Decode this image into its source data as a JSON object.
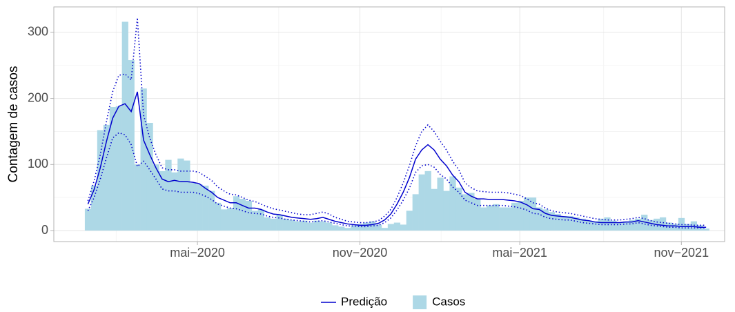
{
  "chart_data": {
    "type": "bar-line",
    "y_label": "Contagem de casos",
    "x": [
      -3,
      4,
      11,
      18,
      25,
      32,
      39,
      46,
      53,
      60,
      67,
      74,
      81,
      88,
      95,
      102,
      109,
      116,
      123,
      130,
      137,
      144,
      151,
      158,
      165,
      172,
      179,
      186,
      193,
      200,
      207,
      214,
      221,
      228,
      235,
      242,
      249,
      256,
      263,
      270,
      277,
      284,
      291,
      298,
      305,
      312,
      319,
      326,
      333,
      340,
      347,
      354,
      361,
      368,
      375,
      382,
      389,
      396,
      403,
      410,
      417,
      424,
      431,
      438,
      445,
      452,
      459,
      466,
      473,
      480,
      487,
      494,
      501,
      508,
      515,
      522,
      529,
      536,
      543,
      550,
      557,
      564,
      571,
      578,
      585,
      592,
      599,
      606,
      613,
      620,
      627,
      634,
      641,
      648,
      655,
      662,
      669,
      676,
      683,
      690,
      697
    ],
    "series": [
      {
        "name": "Predição",
        "type": "line",
        "line_style": "solid",
        "color": "#0000cd",
        "values": [
          40,
          62,
          95,
          135,
          170,
          188,
          192,
          180,
          210,
          137,
          115,
          95,
          78,
          74,
          76,
          74,
          74,
          73,
          71,
          64,
          58,
          50,
          46,
          42,
          42,
          38,
          34,
          34,
          32,
          28,
          25,
          24,
          22,
          20,
          19,
          18,
          17,
          18,
          20,
          17,
          14,
          12,
          10,
          9,
          8,
          8,
          9,
          11,
          16,
          25,
          40,
          58,
          80,
          108,
          122,
          130,
          122,
          108,
          98,
          84,
          74,
          58,
          52,
          48,
          48,
          47,
          47,
          47,
          46,
          45,
          43,
          39,
          33,
          32,
          26,
          23,
          22,
          21,
          20,
          18,
          16,
          15,
          13,
          12,
          12,
          12,
          12,
          13,
          13,
          15,
          13,
          11,
          9,
          8,
          7,
          7,
          6,
          6,
          6,
          5,
          5
        ]
      },
      {
        "name": "Casos",
        "type": "bar",
        "color": "#add8e6",
        "values": [
          33,
          68,
          152,
          160,
          187,
          188,
          316,
          258,
          100,
          215,
          163,
          100,
          90,
          107,
          88,
          109,
          106,
          72,
          70,
          68,
          60,
          42,
          32,
          34,
          52,
          48,
          45,
          30,
          32,
          20,
          18,
          24,
          18,
          16,
          14,
          15,
          12,
          15,
          14,
          12,
          8,
          6,
          4,
          8,
          10,
          12,
          14,
          9,
          4,
          10,
          12,
          9,
          30,
          55,
          85,
          90,
          63,
          80,
          60,
          82,
          65,
          55,
          57,
          48,
          35,
          38,
          40,
          35,
          35,
          42,
          45,
          50,
          50,
          35,
          32,
          28,
          25,
          22,
          22,
          20,
          18,
          15,
          14,
          18,
          20,
          15,
          12,
          14,
          16,
          18,
          24,
          16,
          18,
          20,
          12,
          10,
          19,
          10,
          14,
          8,
          3
        ]
      },
      {
        "type": "line",
        "line_style": "dotted",
        "color": "#0000cd",
        "values": [
          45,
          75,
          115,
          165,
          210,
          235,
          237,
          228,
          322,
          175,
          140,
          115,
          95,
          92,
          92,
          90,
          90,
          90,
          88,
          82,
          76,
          66,
          60,
          55,
          54,
          50,
          46,
          44,
          40,
          36,
          33,
          31,
          29,
          27,
          25,
          24,
          24,
          26,
          28,
          25,
          20,
          17,
          14,
          13,
          12,
          12,
          13,
          15,
          22,
          32,
          50,
          72,
          98,
          128,
          150,
          160,
          150,
          135,
          122,
          105,
          92,
          72,
          65,
          60,
          59,
          58,
          58,
          58,
          57,
          55,
          53,
          48,
          42,
          40,
          34,
          30,
          28,
          27,
          26,
          24,
          22,
          20,
          18,
          17,
          16,
          16,
          16,
          17,
          18,
          20,
          18,
          15,
          13,
          12,
          11,
          10,
          9,
          9,
          8,
          8,
          8
        ]
      },
      {
        "type": "line",
        "line_style": "dotted",
        "color": "#0000cd",
        "values": [
          30,
          50,
          78,
          110,
          140,
          148,
          145,
          130,
          97,
          105,
          92,
          78,
          63,
          60,
          60,
          58,
          58,
          58,
          56,
          52,
          47,
          40,
          37,
          34,
          33,
          30,
          27,
          26,
          25,
          22,
          20,
          19,
          17,
          16,
          15,
          14,
          13,
          14,
          15,
          13,
          11,
          9,
          7,
          7,
          6,
          6,
          7,
          8,
          12,
          19,
          31,
          46,
          64,
          88,
          98,
          100,
          96,
          85,
          78,
          66,
          58,
          46,
          42,
          38,
          38,
          38,
          38,
          38,
          37,
          36,
          34,
          31,
          26,
          25,
          20,
          18,
          17,
          16,
          16,
          14,
          12,
          11,
          10,
          9,
          9,
          9,
          9,
          10,
          10,
          12,
          10,
          8,
          7,
          6,
          5,
          5,
          4,
          4,
          4,
          4,
          4
        ]
      }
    ],
    "xlim": [
      -41.6,
      718
    ],
    "xticks": [
      {
        "value": 121,
        "label": "mai−2020"
      },
      {
        "value": 305,
        "label": "nov−2020"
      },
      {
        "value": 486,
        "label": "mai−2021"
      },
      {
        "value": 669,
        "label": "nov−2021"
      }
    ],
    "ylim": [
      -16.7,
      338.5
    ],
    "yticks": [
      0,
      100,
      200,
      300
    ],
    "grid": true,
    "legend": "bottom"
  }
}
